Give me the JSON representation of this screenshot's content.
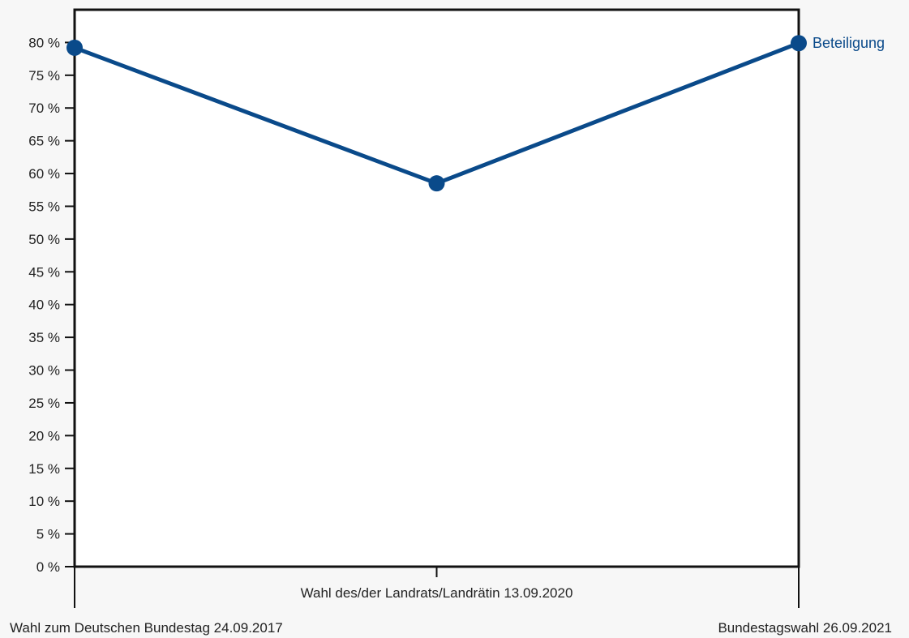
{
  "chart_data": {
    "type": "line",
    "title": "",
    "xlabel": "",
    "ylabel": "",
    "categories": [
      "Wahl zum Deutschen Bundestag 24.09.2017",
      "Wahl des/der Landrats/Landrätin 13.09.2020",
      "Bundestagswahl 26.09.2021"
    ],
    "series": [
      {
        "name": "Beteiligung",
        "values": [
          79.2,
          58.5,
          79.9
        ],
        "color": "#0a4a8a"
      }
    ],
    "ylim": [
      0,
      85
    ],
    "yticks": [
      0,
      5,
      10,
      15,
      20,
      25,
      30,
      35,
      40,
      45,
      50,
      55,
      60,
      65,
      70,
      75,
      80
    ],
    "ytick_labels": [
      "0 %",
      "5 %",
      "10 %",
      "15 %",
      "20 %",
      "25 %",
      "30 %",
      "35 %",
      "40 %",
      "45 %",
      "50 %",
      "55 %",
      "60 %",
      "65 %",
      "70 %",
      "75 %",
      "80 %"
    ],
    "legend": "inline-right",
    "grid": false
  }
}
